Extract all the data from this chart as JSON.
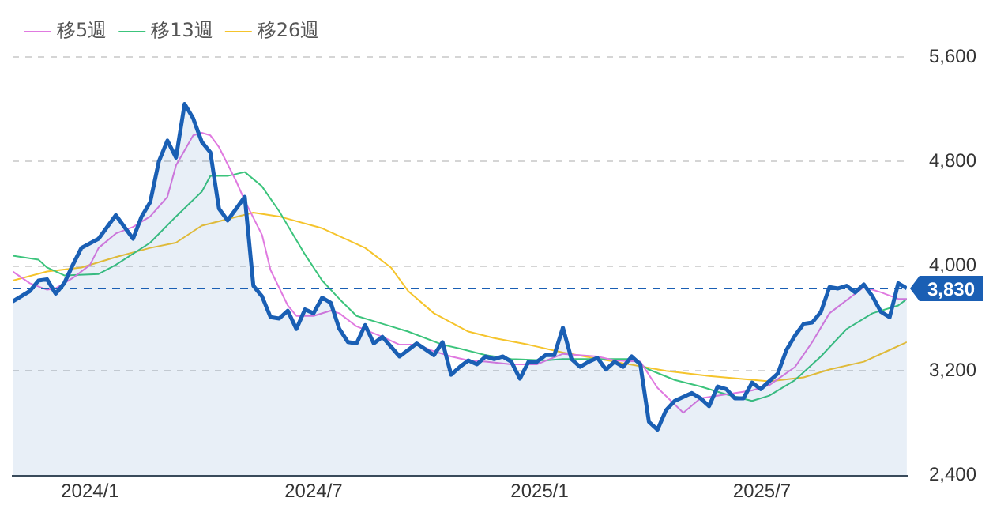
{
  "chart_data": {
    "type": "line",
    "legend": "top left",
    "grid": "y",
    "marker": "none",
    "xlim": [
      "2023-10-30",
      "2025-10-27"
    ],
    "xticks": [
      {
        "value": "2024-01-01",
        "label": "2024/1"
      },
      {
        "value": "2024-07-01",
        "label": "2024/7"
      },
      {
        "value": "2025-01-01",
        "label": "2025/1"
      },
      {
        "value": "2025-07-01",
        "label": "2025/7"
      }
    ],
    "ylim": [
      2400,
      5600
    ],
    "yticks": [
      {
        "value": 2400,
        "label": "2,400"
      },
      {
        "value": 3200,
        "label": "3,200"
      },
      {
        "value": 4000,
        "label": "4,000"
      },
      {
        "value": 4800,
        "label": "4,800"
      },
      {
        "value": 5600,
        "label": "5,600"
      }
    ],
    "ref_lines": [
      {
        "axis": "y",
        "value": 3830,
        "label": "3,830",
        "color": "#1a5fb4",
        "line_style": "dashed"
      }
    ],
    "series": [
      {
        "type": "area",
        "color": "#1a5fb4",
        "x": [
          "2023-10-30",
          "2023-11-13",
          "2023-11-20",
          "2023-11-27",
          "2023-12-04",
          "2023-12-11",
          "2023-12-18",
          "2023-12-25",
          "2024-01-08",
          "2024-01-22",
          "2024-02-05",
          "2024-02-12",
          "2024-02-19",
          "2024-02-26",
          "2024-03-04",
          "2024-03-11",
          "2024-03-18",
          "2024-03-25",
          "2024-04-01",
          "2024-04-08",
          "2024-04-15",
          "2024-04-22",
          "2024-04-29",
          "2024-05-06",
          "2024-05-13",
          "2024-05-20",
          "2024-05-27",
          "2024-06-03",
          "2024-06-10",
          "2024-06-17",
          "2024-06-24",
          "2024-07-01",
          "2024-07-08",
          "2024-07-15",
          "2024-07-22",
          "2024-07-29",
          "2024-08-05",
          "2024-08-12",
          "2024-08-19",
          "2024-08-26",
          "2024-09-09",
          "2024-09-23",
          "2024-10-07",
          "2024-10-14",
          "2024-10-21",
          "2024-10-28",
          "2024-11-04",
          "2024-11-11",
          "2024-11-18",
          "2024-11-25",
          "2024-12-02",
          "2024-12-09",
          "2024-12-16",
          "2024-12-23",
          "2024-12-30",
          "2025-01-06",
          "2025-01-13",
          "2025-01-20",
          "2025-01-27",
          "2025-02-03",
          "2025-02-10",
          "2025-02-17",
          "2025-02-24",
          "2025-03-03",
          "2025-03-10",
          "2025-03-17",
          "2025-03-24",
          "2025-03-31",
          "2025-04-07",
          "2025-04-14",
          "2025-04-21",
          "2025-05-05",
          "2025-05-12",
          "2025-05-19",
          "2025-05-26",
          "2025-06-02",
          "2025-06-09",
          "2025-06-16",
          "2025-06-23",
          "2025-06-30",
          "2025-07-07",
          "2025-07-14",
          "2025-07-21",
          "2025-07-28",
          "2025-08-04",
          "2025-08-11",
          "2025-08-18",
          "2025-08-25",
          "2025-09-01",
          "2025-09-08",
          "2025-09-15",
          "2025-09-22",
          "2025-09-29",
          "2025-10-06",
          "2025-10-13",
          "2025-10-20",
          "2025-10-27"
        ],
        "values": [
          3730,
          3810,
          3890,
          3900,
          3790,
          3870,
          4010,
          4140,
          4210,
          4390,
          4210,
          4380,
          4490,
          4800,
          4960,
          4830,
          5240,
          5130,
          4950,
          4870,
          4440,
          4350,
          4440,
          4530,
          3850,
          3770,
          3610,
          3600,
          3660,
          3520,
          3670,
          3640,
          3760,
          3720,
          3520,
          3420,
          3410,
          3550,
          3410,
          3460,
          3310,
          3410,
          3320,
          3420,
          3170,
          3230,
          3280,
          3250,
          3310,
          3290,
          3310,
          3270,
          3140,
          3270,
          3270,
          3320,
          3320,
          3530,
          3290,
          3230,
          3270,
          3300,
          3210,
          3270,
          3230,
          3310,
          3250,
          2810,
          2750,
          2900,
          2970,
          3030,
          2990,
          2930,
          3080,
          3060,
          2990,
          2990,
          3110,
          3060,
          3120,
          3180,
          3360,
          3470,
          3560,
          3570,
          3650,
          3840,
          3830,
          3850,
          3800,
          3860,
          3770,
          3650,
          3610,
          3870,
          3830
        ]
      },
      {
        "name": "移5週",
        "type": "line",
        "color": "#e07ae0",
        "x": [
          "2023-10-30",
          "2023-11-13",
          "2023-11-27",
          "2023-12-04",
          "2023-12-18",
          "2024-01-01",
          "2024-01-08",
          "2024-01-22",
          "2024-02-05",
          "2024-02-19",
          "2024-03-04",
          "2024-03-11",
          "2024-03-25",
          "2024-04-01",
          "2024-04-08",
          "2024-04-15",
          "2024-04-29",
          "2024-05-06",
          "2024-05-20",
          "2024-05-27",
          "2024-06-10",
          "2024-06-17",
          "2024-07-01",
          "2024-07-15",
          "2024-07-22",
          "2024-08-05",
          "2024-08-26",
          "2024-09-09",
          "2024-09-23",
          "2024-10-07",
          "2024-10-21",
          "2024-11-04",
          "2024-11-18",
          "2024-12-09",
          "2024-12-30",
          "2025-01-20",
          "2025-02-17",
          "2025-03-03",
          "2025-03-24",
          "2025-04-07",
          "2025-04-28",
          "2025-05-12",
          "2025-06-02",
          "2025-06-23",
          "2025-07-07",
          "2025-07-28",
          "2025-08-11",
          "2025-08-25",
          "2025-09-15",
          "2025-09-22",
          "2025-10-06",
          "2025-10-20",
          "2025-10-27"
        ],
        "values": [
          3960,
          3870,
          3820,
          3830,
          3910,
          4010,
          4140,
          4250,
          4300,
          4380,
          4530,
          4770,
          5000,
          5020,
          5000,
          4910,
          4650,
          4500,
          4240,
          3970,
          3700,
          3620,
          3620,
          3660,
          3640,
          3540,
          3460,
          3400,
          3400,
          3350,
          3310,
          3280,
          3270,
          3250,
          3250,
          3330,
          3310,
          3280,
          3270,
          3070,
          2880,
          2990,
          3020,
          3050,
          3090,
          3230,
          3420,
          3640,
          3790,
          3840,
          3800,
          3750,
          3750
        ]
      },
      {
        "name": "移13週",
        "type": "line",
        "color": "#3cc47c",
        "x": [
          "2023-10-30",
          "2023-11-20",
          "2023-11-27",
          "2023-12-11",
          "2024-01-08",
          "2024-01-22",
          "2024-02-19",
          "2024-03-11",
          "2024-04-01",
          "2024-04-08",
          "2024-04-22",
          "2024-05-06",
          "2024-05-20",
          "2024-06-03",
          "2024-06-24",
          "2024-07-08",
          "2024-07-22",
          "2024-08-05",
          "2024-08-26",
          "2024-09-16",
          "2024-10-14",
          "2024-10-28",
          "2024-11-18",
          "2024-12-09",
          "2025-01-06",
          "2025-01-20",
          "2025-02-17",
          "2025-03-17",
          "2025-03-31",
          "2025-04-21",
          "2025-05-12",
          "2025-06-02",
          "2025-06-23",
          "2025-07-07",
          "2025-07-28",
          "2025-08-18",
          "2025-09-08",
          "2025-09-29",
          "2025-10-20",
          "2025-10-27"
        ],
        "values": [
          4080,
          4050,
          3990,
          3930,
          3940,
          4010,
          4180,
          4380,
          4570,
          4690,
          4690,
          4720,
          4610,
          4420,
          4090,
          3890,
          3750,
          3620,
          3560,
          3500,
          3400,
          3370,
          3320,
          3290,
          3280,
          3290,
          3290,
          3290,
          3210,
          3130,
          3080,
          3020,
          2970,
          3010,
          3130,
          3310,
          3520,
          3640,
          3700,
          3750
        ]
      },
      {
        "name": "移26週",
        "type": "line",
        "color": "#f5c42c",
        "x": [
          "2023-10-30",
          "2023-11-27",
          "2023-12-25",
          "2024-01-22",
          "2024-02-19",
          "2024-03-11",
          "2024-04-01",
          "2024-04-22",
          "2024-05-13",
          "2024-06-03",
          "2024-07-08",
          "2024-08-12",
          "2024-09-02",
          "2024-09-16",
          "2024-10-07",
          "2024-11-04",
          "2024-11-25",
          "2024-12-23",
          "2025-01-20",
          "2025-03-03",
          "2025-04-14",
          "2025-05-19",
          "2025-07-07",
          "2025-08-04",
          "2025-08-25",
          "2025-09-22",
          "2025-10-13",
          "2025-10-27"
        ],
        "values": [
          3890,
          3960,
          3990,
          4070,
          4140,
          4180,
          4310,
          4360,
          4410,
          4380,
          4290,
          4140,
          3990,
          3810,
          3640,
          3500,
          3450,
          3400,
          3340,
          3270,
          3200,
          3160,
          3120,
          3150,
          3210,
          3270,
          3360,
          3420
        ]
      }
    ]
  }
}
